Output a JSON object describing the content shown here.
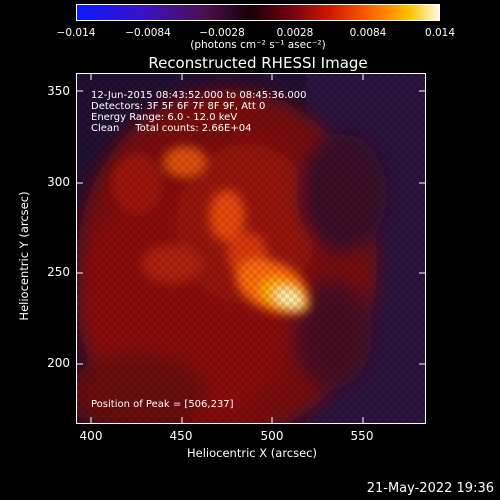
{
  "colorbar": {
    "ticks": [
      "−0.014",
      "−0.0084",
      "−0.0028",
      "0.0028",
      "0.0084",
      "0.014"
    ],
    "units": "(photons cm⁻² s⁻¹ asec⁻²)",
    "min": -0.014,
    "max": 0.014
  },
  "title": "Reconstructed RHESSI Image",
  "annotations": {
    "time_range": "12-Jun-2015 08:43:52.000 to 08:45:36.000",
    "detectors": "Detectors: 3F 5F 6F 7F 8F 9F, Att 0",
    "energy_range": "Energy Range: 6.0 - 12.0 keV",
    "clean_counts": "Clean     Total counts: 2.66E+04",
    "peak_position": "Position of Peak = [506,237]"
  },
  "axes": {
    "xlabel": "Heliocentric X (arcsec)",
    "ylabel": "Heliocentric Y (arcsec)",
    "xticks": [
      "400",
      "450",
      "500",
      "550"
    ],
    "yticks": [
      "350",
      "300",
      "250",
      "200"
    ],
    "xlim": [
      392,
      590
    ],
    "ylim": [
      166,
      364
    ]
  },
  "timestamp": "21-May-2022 19:36"
}
